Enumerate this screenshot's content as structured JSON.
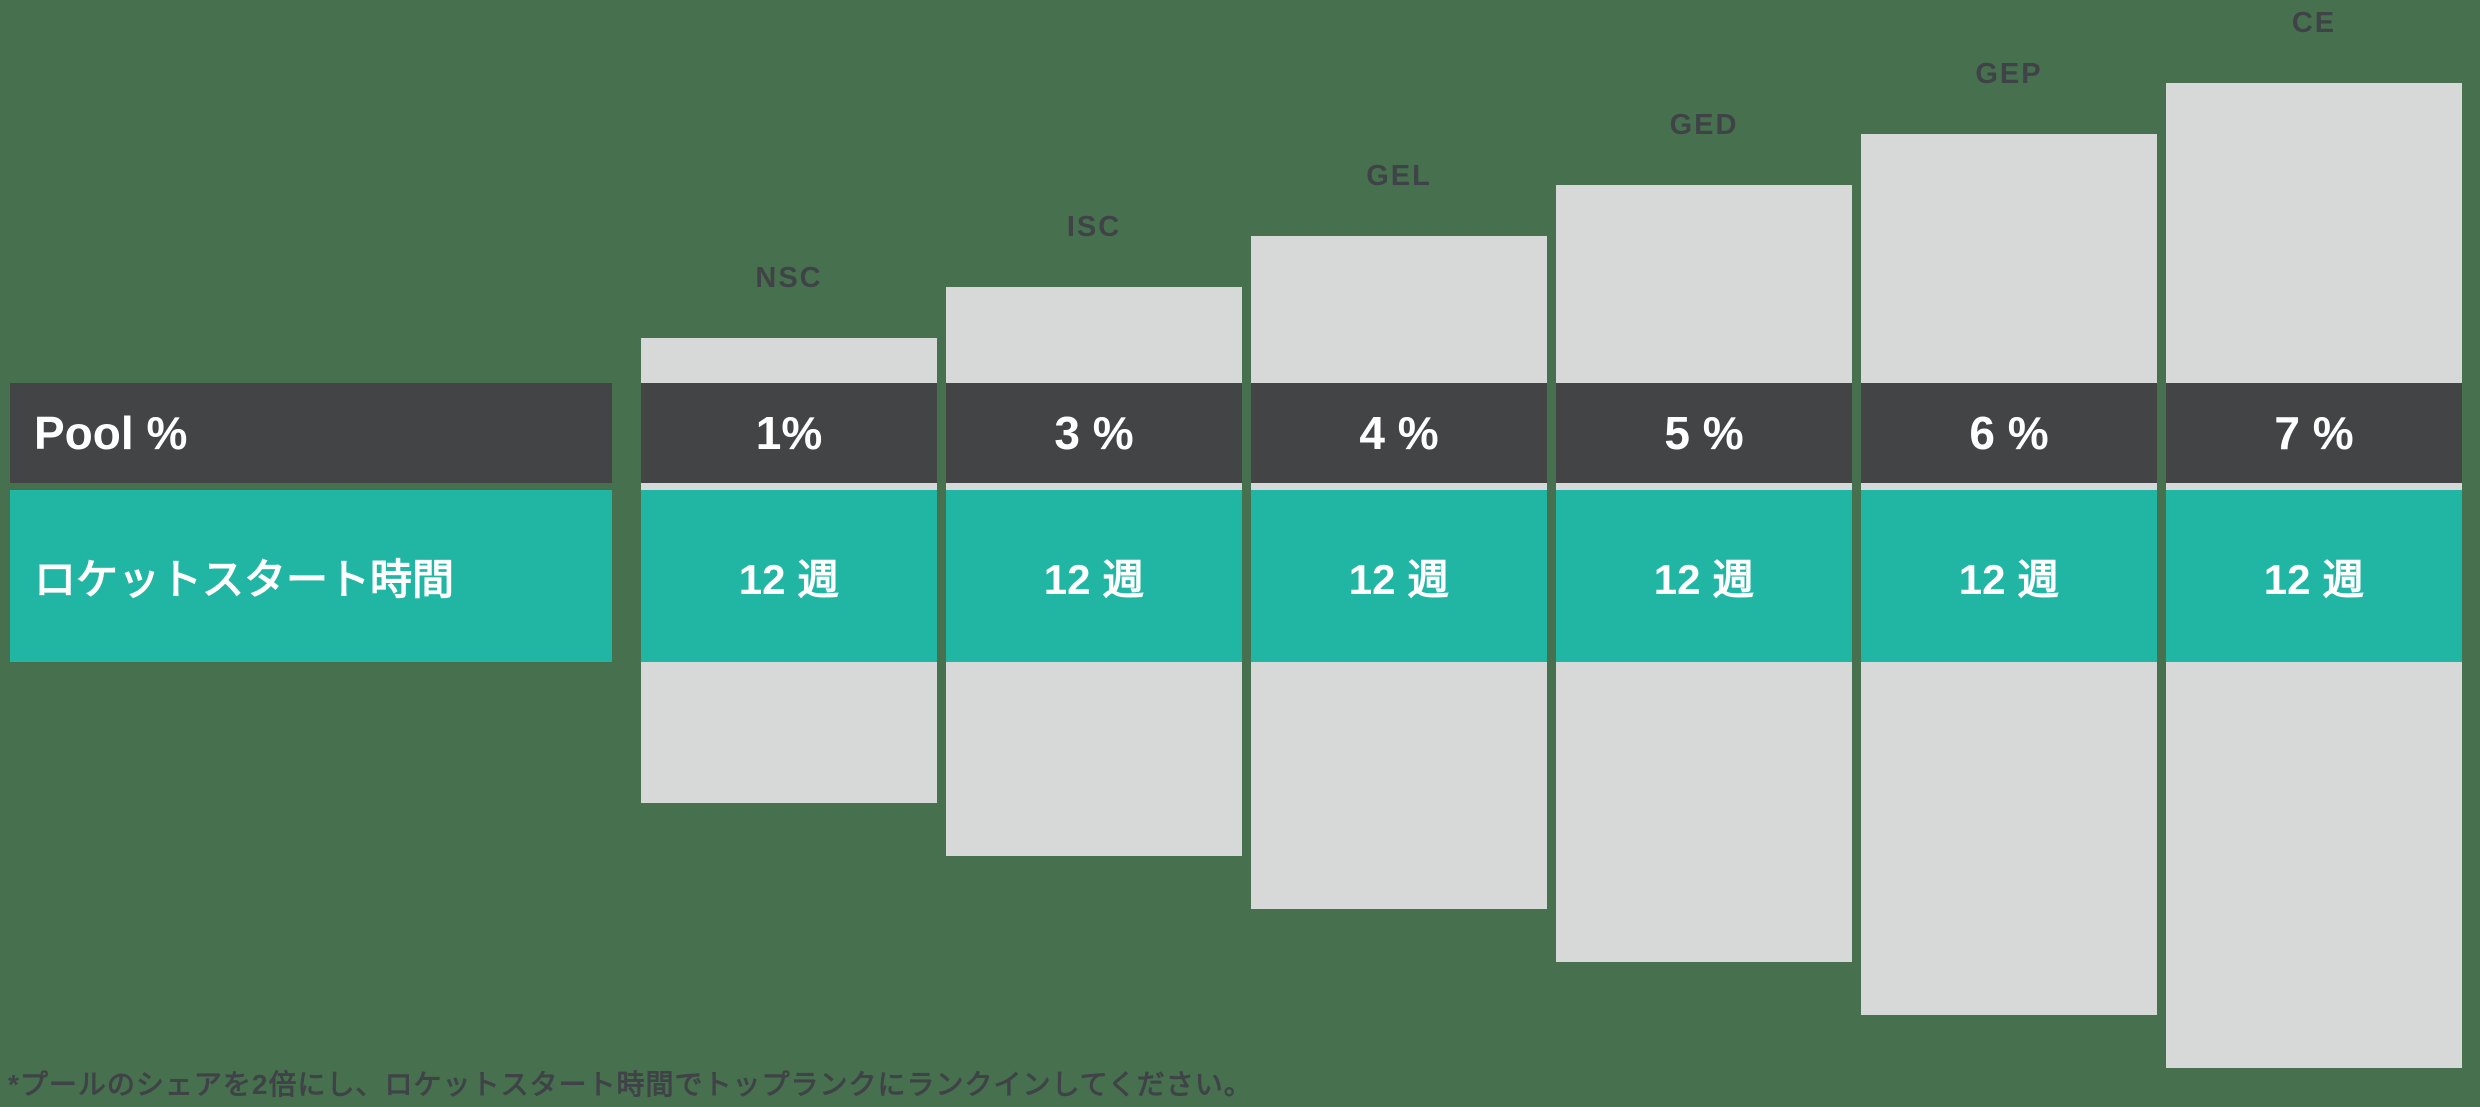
{
  "colors": {
    "bg": "#47714e",
    "colgray": "#d7d9d8",
    "dark": "#424446",
    "teal": "#21b6a4",
    "label": "#3f4347",
    "value_text": "#ffffff"
  },
  "rows": {
    "pool": {
      "label": "Pool %"
    },
    "rocket": {
      "label": "ロケットスタート時間"
    }
  },
  "columns": [
    {
      "label": "NSC",
      "pool": "1%",
      "rocket": "12 週"
    },
    {
      "label": "ISC",
      "pool": "3 %",
      "rocket": "12 週"
    },
    {
      "label": "GEL",
      "pool": "4 %",
      "rocket": "12 週"
    },
    {
      "label": "GED",
      "pool": "5 %",
      "rocket": "12 週"
    },
    {
      "label": "GEP",
      "pool": "6 %",
      "rocket": "12 週"
    },
    {
      "label": "CE",
      "pool": "7 %",
      "rocket": "12 週"
    }
  ],
  "footer": {
    "note": "*プールのシェアを2倍にし、ロケットスタート時間でトップランクにランクインしてください。"
  },
  "chart_data": {
    "type": "bar",
    "categories": [
      "NSC",
      "ISC",
      "GEL",
      "GED",
      "GEP",
      "CE"
    ],
    "series": [
      {
        "name": "Pool %",
        "values": [
          1,
          3,
          4,
          5,
          6,
          7
        ],
        "unit": "%"
      },
      {
        "name": "ロケットスタート時間",
        "values": [
          12,
          12,
          12,
          12,
          12,
          12
        ],
        "unit": "週"
      }
    ],
    "title": "",
    "xlabel": "",
    "ylabel": "",
    "legend": "none",
    "grid": false,
    "layout_hint": "staircase of gray columns rising left-to-right; two horizontal value bands (dark = Pool %, teal = rocket-start weeks) overlay all columns",
    "note": "*プールのシェアを2倍にし、ロケットスタート時間でトップランクにランクインしてください。"
  }
}
